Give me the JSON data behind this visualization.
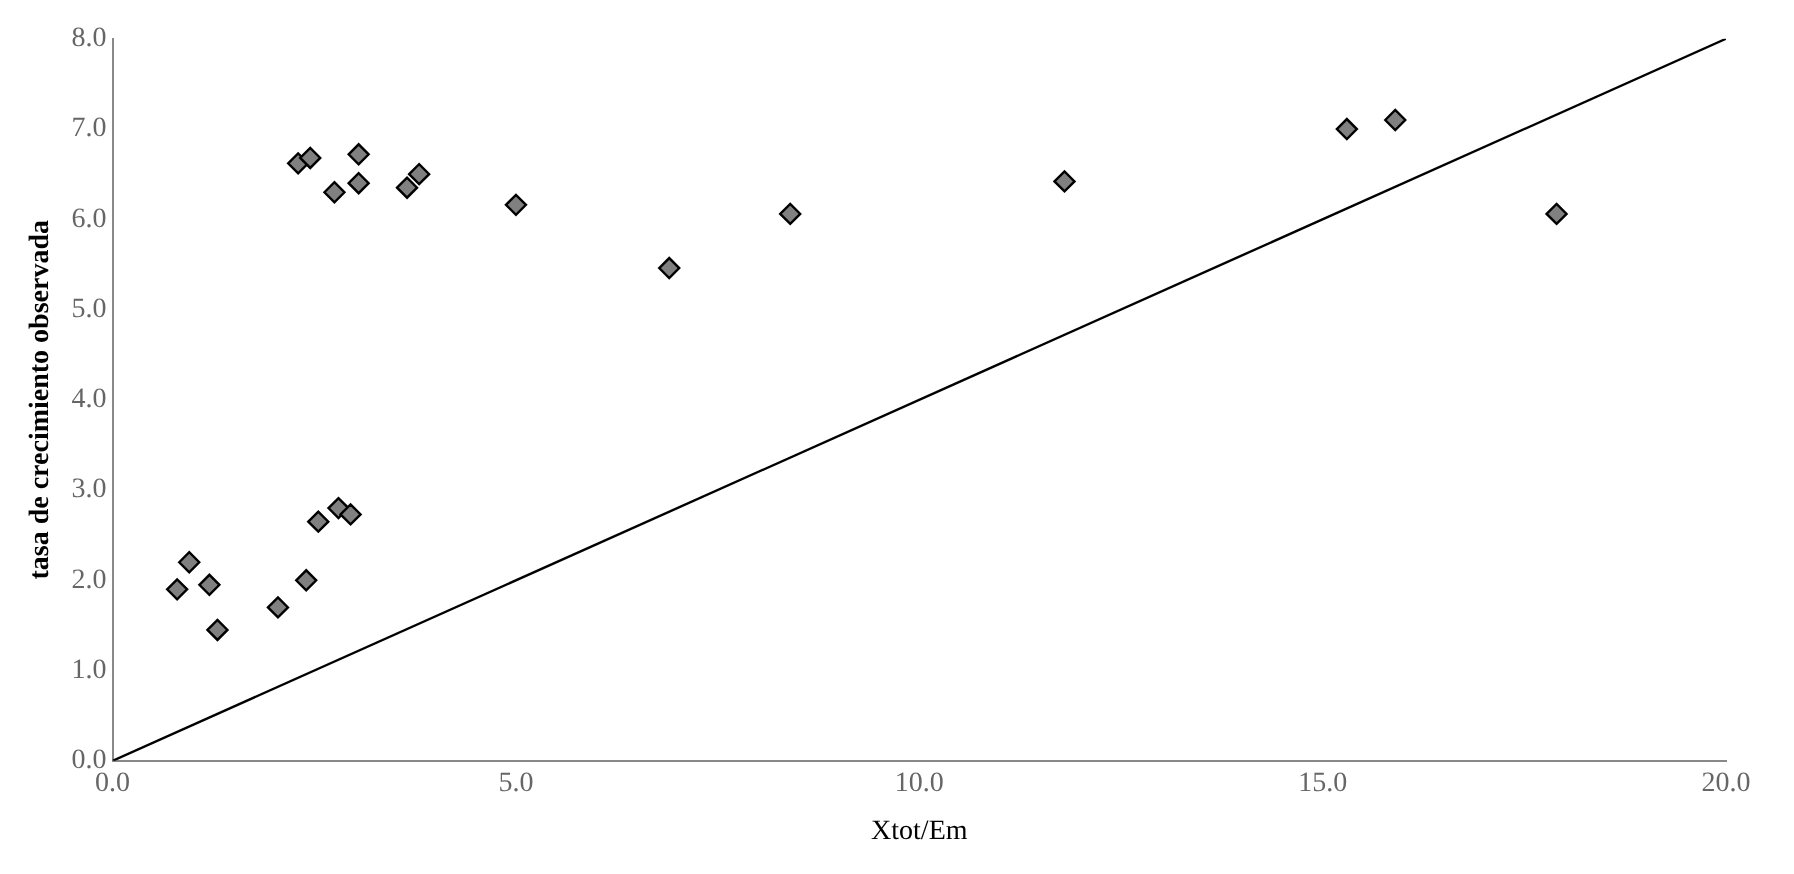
{
  "chart_data": {
    "type": "scatter",
    "xlabel": "Xtot/Em",
    "ylabel": "tasa de crecimiento observada",
    "xlim": [
      0,
      20
    ],
    "ylim": [
      0,
      8
    ],
    "xticks": [
      {
        "value": 0,
        "label": "0.0"
      },
      {
        "value": 5,
        "label": "5.0"
      },
      {
        "value": 10,
        "label": "10.0"
      },
      {
        "value": 15,
        "label": "15.0"
      },
      {
        "value": 20,
        "label": "20.0"
      }
    ],
    "yticks": [
      {
        "value": 0,
        "label": "0.0"
      },
      {
        "value": 1,
        "label": "1.0"
      },
      {
        "value": 2,
        "label": "2.0"
      },
      {
        "value": 3,
        "label": "3.0"
      },
      {
        "value": 4,
        "label": "4.0"
      },
      {
        "value": 5,
        "label": "5.0"
      },
      {
        "value": 6,
        "label": "6.0"
      },
      {
        "value": 7,
        "label": "7.0"
      },
      {
        "value": 8,
        "label": "8.0"
      }
    ],
    "legend": false,
    "grid": false,
    "series": [
      {
        "type": "scatter",
        "marker": "diamond",
        "color": "#808080",
        "x": [
          0.8,
          0.95,
          1.2,
          1.3,
          2.05,
          2.4,
          2.55,
          2.8,
          2.95,
          2.3,
          2.45,
          2.75,
          3.05,
          3.05,
          3.65,
          3.8,
          5.0,
          6.9,
          8.4,
          11.8,
          15.3,
          15.9,
          17.9
        ],
        "values": [
          1.9,
          2.2,
          1.95,
          1.45,
          1.7,
          2.0,
          2.65,
          2.8,
          2.73,
          6.62,
          6.68,
          6.3,
          6.4,
          6.72,
          6.35,
          6.5,
          6.16,
          5.46,
          6.06,
          6.42,
          7.0,
          7.1,
          6.06
        ]
      },
      {
        "type": "line",
        "marker": "none",
        "color": "#000000",
        "x": [
          0,
          20
        ],
        "values": [
          0,
          8
        ]
      }
    ]
  }
}
